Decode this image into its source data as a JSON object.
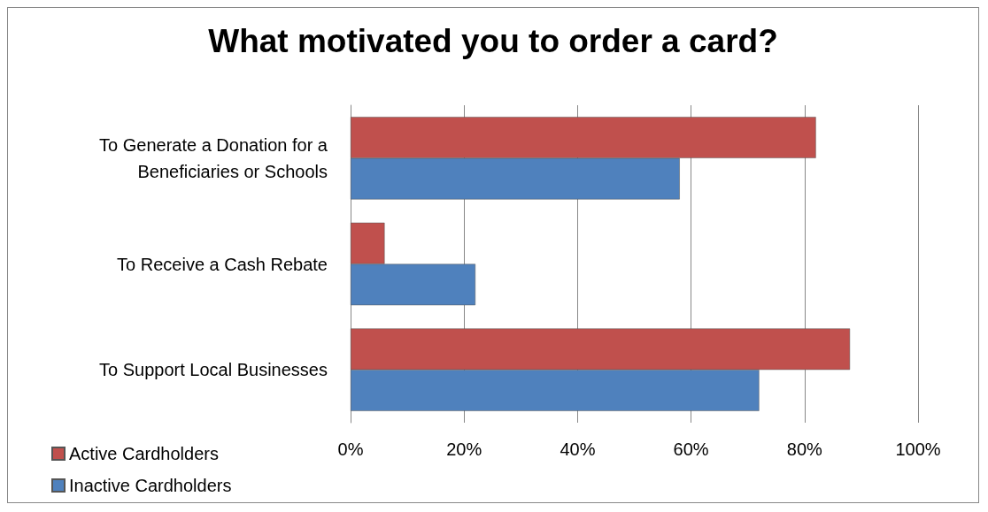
{
  "chart_data": {
    "type": "bar",
    "orientation": "horizontal",
    "title": "What motivated you to order a card?",
    "categories": [
      "To Generate a Donation for a\nBeneficiaries or Schools",
      "To Receive a Cash Rebate",
      "To Support Local Businesses"
    ],
    "series": [
      {
        "name": "Active Cardholders",
        "color": "#c0504d",
        "values": [
          82,
          6,
          88
        ]
      },
      {
        "name": "Inactive Cardholders",
        "color": "#4f81bd",
        "values": [
          58,
          22,
          72
        ]
      }
    ],
    "xlim": [
      0,
      100
    ],
    "xticks": [
      {
        "value": 0,
        "label": "0%"
      },
      {
        "value": 20,
        "label": "20%"
      },
      {
        "value": 40,
        "label": "40%"
      },
      {
        "value": 60,
        "label": "60%"
      },
      {
        "value": 80,
        "label": "80%"
      },
      {
        "value": 100,
        "label": "100%"
      }
    ],
    "grid": "x",
    "legend": "bottom left"
  }
}
